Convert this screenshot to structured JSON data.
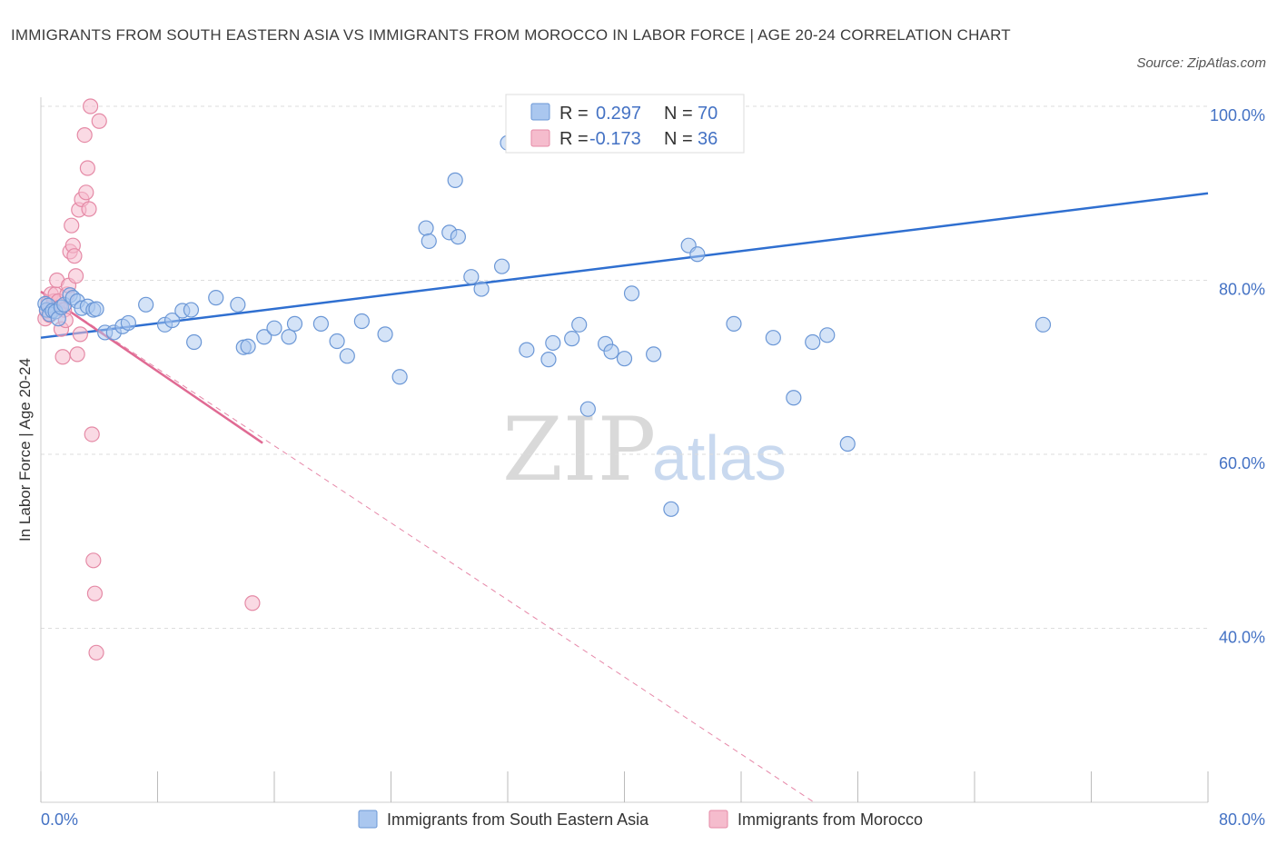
{
  "header": {
    "title": "IMMIGRANTS FROM SOUTH EASTERN ASIA VS IMMIGRANTS FROM MOROCCO IN LABOR FORCE | AGE 20-24 CORRELATION CHART",
    "source": "Source: ZipAtlas.com"
  },
  "watermark": {
    "zip": "ZIP",
    "atlas": "atlas"
  },
  "legend": {
    "r_label": "R =",
    "n_label": "N =",
    "series1": {
      "r": "0.297",
      "n": "70"
    },
    "series2": {
      "r": "-0.173",
      "n": "36"
    }
  },
  "colors": {
    "blue_fill": "#aac7ef",
    "blue_stroke": "#6b97d6",
    "blue_line": "#2f6fd0",
    "pink_fill": "#f5bccd",
    "pink_stroke": "#e58aa6",
    "pink_line": "#e06a93",
    "grid": "#dddddd",
    "axis": "#cccccc"
  },
  "chart_data": {
    "type": "scatter",
    "title": "IMMIGRANTS FROM SOUTH EASTERN ASIA VS IMMIGRANTS FROM MOROCCO IN LABOR FORCE | AGE 20-24 CORRELATION CHART",
    "xlabel": "",
    "ylabel": "In Labor Force | Age 20-24",
    "xlim": [
      0,
      80
    ],
    "ylim": [
      20,
      100
    ],
    "x_tick_labels": [
      "0.0%",
      "80.0%"
    ],
    "y_ticks": [
      40,
      60,
      80,
      100
    ],
    "y_tick_labels": [
      "40.0%",
      "60.0%",
      "80.0%",
      "100.0%"
    ],
    "grid": true,
    "legend_position": "top-center",
    "series": [
      {
        "name": "Immigrants from South Eastern Asia",
        "color": "blue",
        "R": 0.297,
        "N": 70,
        "trend": {
          "x": [
            0,
            80
          ],
          "y": [
            73.4,
            90.0
          ],
          "style": "solid"
        },
        "points": [
          [
            0.3,
            77.3
          ],
          [
            0.4,
            76.6
          ],
          [
            0.5,
            77.1
          ],
          [
            0.6,
            76.1
          ],
          [
            0.8,
            76.5
          ],
          [
            1.0,
            76.4
          ],
          [
            1.2,
            75.6
          ],
          [
            1.4,
            76.9
          ],
          [
            1.6,
            77.2
          ],
          [
            2.0,
            78.3
          ],
          [
            2.2,
            78.0
          ],
          [
            2.5,
            77.6
          ],
          [
            2.8,
            76.8
          ],
          [
            3.2,
            77.0
          ],
          [
            3.6,
            76.6
          ],
          [
            3.8,
            76.7
          ],
          [
            4.4,
            74.0
          ],
          [
            5.0,
            74.0
          ],
          [
            5.6,
            74.7
          ],
          [
            6.0,
            75.1
          ],
          [
            7.2,
            77.2
          ],
          [
            8.5,
            74.9
          ],
          [
            9.0,
            75.4
          ],
          [
            9.7,
            76.5
          ],
          [
            10.3,
            76.6
          ],
          [
            10.5,
            72.9
          ],
          [
            12.0,
            78.0
          ],
          [
            13.5,
            77.2
          ],
          [
            13.9,
            72.3
          ],
          [
            14.2,
            72.4
          ],
          [
            15.3,
            73.5
          ],
          [
            16.0,
            74.5
          ],
          [
            17.0,
            73.5
          ],
          [
            17.4,
            75.0
          ],
          [
            19.2,
            75.0
          ],
          [
            20.3,
            73.0
          ],
          [
            21.0,
            71.3
          ],
          [
            22.0,
            75.3
          ],
          [
            23.6,
            73.8
          ],
          [
            24.6,
            68.9
          ],
          [
            26.4,
            86.0
          ],
          [
            26.6,
            84.5
          ],
          [
            28.0,
            85.5
          ],
          [
            28.4,
            91.5
          ],
          [
            28.6,
            85.0
          ],
          [
            29.5,
            80.4
          ],
          [
            30.2,
            79.0
          ],
          [
            31.6,
            81.6
          ],
          [
            32.0,
            95.8
          ],
          [
            33.3,
            72.0
          ],
          [
            34.8,
            70.9
          ],
          [
            35.1,
            72.8
          ],
          [
            36.4,
            73.3
          ],
          [
            36.9,
            74.9
          ],
          [
            37.5,
            65.2
          ],
          [
            38.7,
            72.7
          ],
          [
            39.1,
            71.8
          ],
          [
            40.0,
            71.0
          ],
          [
            40.5,
            78.5
          ],
          [
            42.0,
            71.5
          ],
          [
            43.2,
            53.7
          ],
          [
            44.4,
            84.0
          ],
          [
            45.0,
            83.0
          ],
          [
            47.5,
            75.0
          ],
          [
            50.2,
            73.4
          ],
          [
            51.6,
            66.5
          ],
          [
            52.9,
            72.9
          ],
          [
            53.9,
            73.7
          ],
          [
            55.3,
            61.2
          ],
          [
            68.7,
            74.9
          ]
        ]
      },
      {
        "name": "Immigrants from Morocco",
        "color": "pink",
        "R": -0.173,
        "N": 36,
        "trend": {
          "x": [
            0,
            15.2
          ],
          "y": [
            78.7,
            61.3
          ],
          "style": "solid",
          "extended_x": [
            0,
            53.0
          ],
          "extended_y": [
            78.7,
            20.0
          ],
          "extended_style": "dashed"
        },
        "points": [
          [
            0.3,
            75.6
          ],
          [
            0.4,
            76.5
          ],
          [
            0.5,
            77.4
          ],
          [
            0.6,
            76.0
          ],
          [
            0.7,
            78.4
          ],
          [
            0.9,
            77.6
          ],
          [
            1.0,
            78.4
          ],
          [
            1.1,
            80.0
          ],
          [
            1.2,
            77.6
          ],
          [
            1.3,
            76.9
          ],
          [
            1.4,
            74.4
          ],
          [
            1.5,
            71.2
          ],
          [
            1.6,
            76.6
          ],
          [
            1.7,
            75.4
          ],
          [
            1.8,
            78.4
          ],
          [
            1.9,
            79.4
          ],
          [
            2.0,
            83.3
          ],
          [
            2.1,
            86.3
          ],
          [
            2.2,
            84.0
          ],
          [
            2.3,
            82.8
          ],
          [
            2.4,
            80.5
          ],
          [
            2.5,
            71.5
          ],
          [
            2.6,
            88.1
          ],
          [
            2.7,
            73.8
          ],
          [
            2.8,
            89.3
          ],
          [
            3.0,
            96.7
          ],
          [
            3.1,
            90.1
          ],
          [
            3.2,
            92.9
          ],
          [
            3.3,
            88.2
          ],
          [
            3.4,
            100.0
          ],
          [
            3.5,
            62.3
          ],
          [
            3.6,
            47.8
          ],
          [
            3.7,
            44.0
          ],
          [
            3.8,
            37.2
          ],
          [
            4.0,
            98.3
          ],
          [
            14.5,
            42.9
          ]
        ]
      }
    ]
  },
  "bottom_legend": {
    "series1_label": "Immigrants from South Eastern Asia",
    "series2_label": "Immigrants from Morocco"
  }
}
